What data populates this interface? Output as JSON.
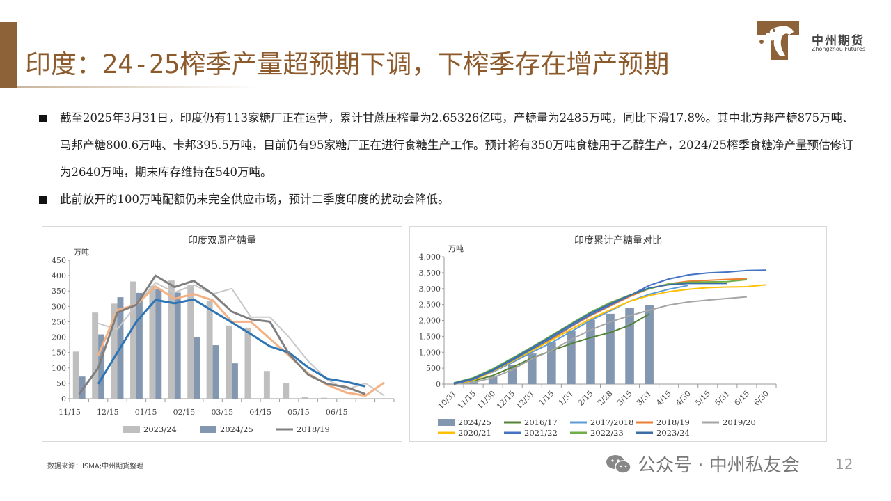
{
  "header": {
    "title": "印度：24-25榨季产量超预期下调，下榨季存在增产预期",
    "logo_cn": "中州期货",
    "logo_en": "Zhongzhou Futures",
    "brand_color": "#8d6238"
  },
  "bullets": [
    "截至2025年3月31日，印度仍有113家糖厂正在运营，累计甘蔗压榨量为2.65326亿吨，产糖量为2485万吨，同比下滑17.8%。其中北方邦产糖875万吨、马邦产糖800.6万吨、卡邦395.5万吨，目前仍有95家糖厂正在进行食糖生产工作。预计将有350万吨食糖用于乙醇生产，2024/25榨季食糖净产量预估修订为2640万吨，期末库存维持在540万吨。",
    "此前放开的100万吨配额仍未完全供应市场，预计二季度印度的扰动会降低。"
  ],
  "footer": {
    "source": "数据来源：ISMA;中州期货整理",
    "watermark": "公众号 · 中州私友会",
    "page": "12"
  },
  "chart_data": [
    {
      "type": "bar",
      "title": "印度双周产糖量",
      "ylabel": "万吨",
      "ylim": [
        0,
        450
      ],
      "yticks": [
        0,
        50,
        100,
        150,
        200,
        250,
        300,
        350,
        400,
        450
      ],
      "categories": [
        "11/15",
        "",
        "12/15",
        "",
        "01/15",
        "",
        "02/15",
        "",
        "03/15",
        "",
        "04/15",
        "",
        "05/15",
        "",
        "06/15",
        "",
        ""
      ],
      "bars": [
        {
          "name": "2023/24",
          "color": "#bfbfbf",
          "values": [
            153,
            280,
            309,
            381,
            367,
            384,
            370,
            318,
            238,
            230,
            90,
            51,
            5,
            3,
            0,
            null,
            null
          ]
        },
        {
          "name": "2024/25",
          "color": "#8497b0",
          "values": [
            72,
            209,
            330,
            344,
            358,
            345,
            200,
            174,
            115,
            null,
            null,
            null,
            null,
            null,
            null,
            null,
            null
          ]
        }
      ],
      "lines": [
        {
          "name": "",
          "color": "#c8c8c8",
          "width": 2,
          "values": [
            null,
            245,
            225,
            305,
            377,
            345,
            370,
            340,
            358,
            265,
            265,
            200,
            122,
            62,
            30,
            50,
            10
          ]
        },
        {
          "name": "",
          "color": "#f4b183",
          "width": 3,
          "values": [
            null,
            140,
            288,
            305,
            365,
            325,
            340,
            320,
            250,
            250,
            195,
            140,
            82,
            45,
            20,
            10,
            53
          ]
        },
        {
          "name": "",
          "color": "#2e75b6",
          "width": 3,
          "values": [
            null,
            48,
            150,
            250,
            321,
            310,
            323,
            285,
            248,
            210,
            170,
            150,
            102,
            65,
            55,
            40,
            null
          ]
        },
        {
          "name": "2018/19",
          "color": "#7f7f7f",
          "width": 3,
          "values": [
            15,
            100,
            280,
            305,
            400,
            363,
            383,
            340,
            283,
            258,
            250,
            145,
            78,
            48,
            38,
            15,
            null
          ]
        }
      ],
      "legend": [
        "2023/24",
        "2024/25",
        "2018/19"
      ]
    },
    {
      "type": "bar",
      "title": "印度累计产糖量对比",
      "ylabel": "万吨",
      "ylim": [
        0,
        4000
      ],
      "yticks": [
        "0",
        "500",
        "1,000",
        "1,500",
        "2,000",
        "2,500",
        "3,000",
        "3,500",
        "4,000"
      ],
      "categories": [
        "10/31",
        "11/15",
        "11/30",
        "12/15",
        "12/31",
        "1/15",
        "1/31",
        "2/15",
        "2/28",
        "3/15",
        "3/31",
        "4/15",
        "4/30",
        "5/15",
        "5/31",
        "6/15",
        "6/30"
      ],
      "bars": [
        {
          "name": "2024/25",
          "color": "#8497b0",
          "values": [
            null,
            60,
            250,
            610,
            960,
            1310,
            1660,
            2020,
            2210,
            2390,
            2490,
            null,
            null,
            null,
            null,
            null,
            null
          ]
        }
      ],
      "lines": [
        {
          "name": "2016/17",
          "color": "#548235",
          "values": [
            30,
            100,
            270,
            530,
            820,
            1050,
            1270,
            1460,
            1620,
            1850,
            2200
          ]
        },
        {
          "name": "2017/2018",
          "color": "#5b9bd5",
          "values": [
            0,
            150,
            380,
            680,
            1000,
            1300,
            1650,
            2000,
            2300,
            2600,
            2820,
            2980,
            3100
          ]
        },
        {
          "name": "2018/19",
          "color": "#ed7d31",
          "values": [
            0,
            120,
            400,
            720,
            1050,
            1420,
            1800,
            2150,
            2450,
            2750,
            3000,
            3150,
            3230,
            3260,
            3290,
            3310
          ]
        },
        {
          "name": "2019/20",
          "color": "#a5a5a5",
          "values": [
            0,
            50,
            200,
            450,
            800,
            1050,
            1400,
            1700,
            1950,
            2150,
            2320,
            2480,
            2580,
            2640,
            2690,
            2740
          ]
        },
        {
          "name": "2020/21",
          "color": "#ffc000",
          "values": [
            0,
            120,
            400,
            720,
            1050,
            1380,
            1720,
            2050,
            2330,
            2600,
            2780,
            2900,
            2980,
            3030,
            3050,
            3060,
            3120
          ]
        },
        {
          "name": "2021/22",
          "color": "#4472c4",
          "values": [
            0,
            150,
            420,
            750,
            1100,
            1450,
            1820,
            2180,
            2480,
            2780,
            3100,
            3300,
            3430,
            3490,
            3520,
            3570,
            3580
          ]
        },
        {
          "name": "2022/23",
          "color": "#70ad47",
          "values": [
            40,
            200,
            480,
            820,
            1170,
            1530,
            1900,
            2260,
            2560,
            2800,
            2990,
            3150,
            3200,
            3210,
            3220,
            3280
          ]
        },
        {
          "name": "2023/24",
          "color": "#3a6ea5",
          "values": [
            30,
            180,
            450,
            790,
            1140,
            1500,
            1870,
            2230,
            2520,
            2790,
            3020,
            3120,
            3160,
            3160,
            3160
          ]
        }
      ],
      "legend": [
        "2024/25",
        "2016/17",
        "2017/2018",
        "2018/19",
        "2019/20",
        "2020/21",
        "2021/22",
        "2022/23",
        "2023/24"
      ]
    }
  ]
}
